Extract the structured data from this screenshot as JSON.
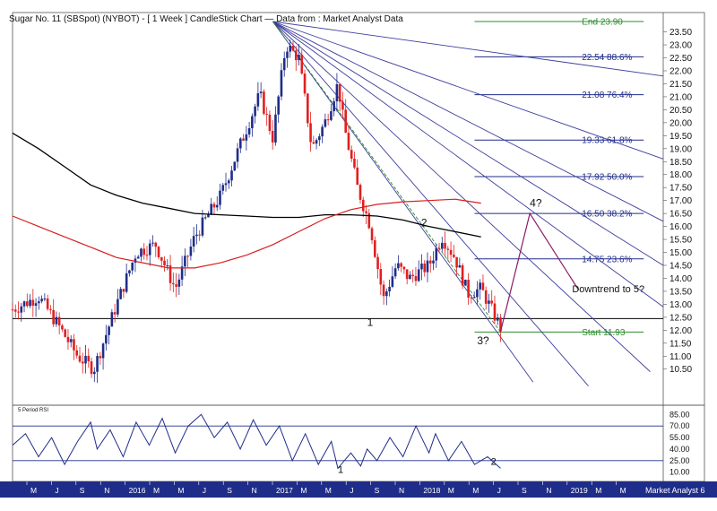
{
  "chart_data": [
    {
      "type": "candlestick",
      "title": "Sugar No. 11 (SBSpot) (NYBOT) - [ 1 Week ] CandleStick Chart — Data from : Market Analyst Data",
      "ylim": [
        9.8,
        23.9
      ],
      "y_ticks": [
        10.5,
        11.0,
        11.5,
        12.0,
        12.5,
        13.0,
        13.5,
        14.0,
        14.5,
        15.0,
        15.5,
        16.0,
        16.5,
        17.0,
        17.5,
        18.0,
        18.5,
        19.0,
        19.5,
        20.0,
        20.5,
        21.0,
        21.5,
        22.0,
        22.5,
        23.0,
        23.5
      ],
      "price_path": [
        [
          0.0,
          12.8
        ],
        [
          0.04,
          13.3
        ],
        [
          0.07,
          12.2
        ],
        [
          0.1,
          11.0
        ],
        [
          0.125,
          10.5
        ],
        [
          0.16,
          13.0
        ],
        [
          0.19,
          15.0
        ],
        [
          0.22,
          15.3
        ],
        [
          0.25,
          13.6
        ],
        [
          0.28,
          15.6
        ],
        [
          0.32,
          17.2
        ],
        [
          0.36,
          19.8
        ],
        [
          0.38,
          21.1
        ],
        [
          0.4,
          19.4
        ],
        [
          0.42,
          23.0
        ],
        [
          0.44,
          22.5
        ],
        [
          0.46,
          19.0
        ],
        [
          0.48,
          20.0
        ],
        [
          0.5,
          21.5
        ],
        [
          0.51,
          19.8
        ],
        [
          0.53,
          17.5
        ],
        [
          0.55,
          16.0
        ],
        [
          0.57,
          13.2
        ],
        [
          0.59,
          14.5
        ],
        [
          0.61,
          14.0
        ],
        [
          0.64,
          14.5
        ],
        [
          0.66,
          15.6
        ],
        [
          0.68,
          14.8
        ],
        [
          0.7,
          13.4
        ],
        [
          0.72,
          13.6
        ],
        [
          0.75,
          12.1
        ]
      ],
      "sma_black": [
        [
          0.0,
          19.6
        ],
        [
          0.04,
          19.0
        ],
        [
          0.08,
          18.3
        ],
        [
          0.12,
          17.6
        ],
        [
          0.16,
          17.2
        ],
        [
          0.2,
          16.9
        ],
        [
          0.24,
          16.7
        ],
        [
          0.28,
          16.5
        ],
        [
          0.32,
          16.45
        ],
        [
          0.36,
          16.4
        ],
        [
          0.4,
          16.35
        ],
        [
          0.44,
          16.35
        ],
        [
          0.48,
          16.45
        ],
        [
          0.52,
          16.45
        ],
        [
          0.56,
          16.4
        ],
        [
          0.6,
          16.25
        ],
        [
          0.64,
          16.0
        ],
        [
          0.68,
          15.8
        ],
        [
          0.72,
          15.6
        ]
      ],
      "sma_red": [
        [
          0.0,
          16.4
        ],
        [
          0.04,
          16.0
        ],
        [
          0.08,
          15.6
        ],
        [
          0.12,
          15.2
        ],
        [
          0.16,
          14.8
        ],
        [
          0.2,
          14.6
        ],
        [
          0.24,
          14.4
        ],
        [
          0.28,
          14.4
        ],
        [
          0.32,
          14.6
        ],
        [
          0.36,
          14.9
        ],
        [
          0.4,
          15.3
        ],
        [
          0.44,
          15.8
        ],
        [
          0.48,
          16.3
        ],
        [
          0.52,
          16.65
        ],
        [
          0.56,
          16.85
        ],
        [
          0.6,
          16.95
        ],
        [
          0.64,
          17.0
        ],
        [
          0.68,
          17.05
        ],
        [
          0.72,
          16.9
        ]
      ],
      "fib_levels": [
        {
          "label": "End 23.90",
          "value": 23.9
        },
        {
          "label": "22.54 88.6%",
          "value": 22.54
        },
        {
          "label": "21.08 76.4%",
          "value": 21.08
        },
        {
          "label": "19.33 61.8%",
          "value": 19.33
        },
        {
          "label": "17.92 50.0%",
          "value": 17.92
        },
        {
          "label": "16.50 38.2%",
          "value": 16.5
        },
        {
          "label": "14.75 23.6%",
          "value": 14.75
        },
        {
          "label": "Start 11.93",
          "value": 11.93
        }
      ],
      "support_level": 12.45,
      "annotations": [
        {
          "label": "1",
          "x": 0.545,
          "y": 12.3
        },
        {
          "label": "2",
          "x": 0.628,
          "y": 16.15
        },
        {
          "label": "3?",
          "x": 0.714,
          "y": 11.6
        },
        {
          "label": "4?",
          "x": 0.795,
          "y": 16.9
        },
        {
          "label": "Downtrend to 5?",
          "x": 0.86,
          "y": 13.6
        }
      ]
    },
    {
      "type": "line",
      "title": "5 Period RSI",
      "ylim": [
        5,
        90
      ],
      "y_ticks": [
        10.0,
        25.0,
        40.0,
        55.0,
        70.0,
        85.0
      ],
      "reference_lines": [
        70,
        25
      ],
      "rsi": [
        [
          0.0,
          45
        ],
        [
          0.02,
          60
        ],
        [
          0.04,
          30
        ],
        [
          0.06,
          55
        ],
        [
          0.08,
          20
        ],
        [
          0.1,
          50
        ],
        [
          0.12,
          75
        ],
        [
          0.13,
          40
        ],
        [
          0.15,
          65
        ],
        [
          0.17,
          30
        ],
        [
          0.19,
          75
        ],
        [
          0.21,
          45
        ],
        [
          0.23,
          80
        ],
        [
          0.25,
          35
        ],
        [
          0.27,
          70
        ],
        [
          0.29,
          85
        ],
        [
          0.31,
          55
        ],
        [
          0.33,
          75
        ],
        [
          0.35,
          40
        ],
        [
          0.37,
          78
        ],
        [
          0.39,
          45
        ],
        [
          0.41,
          70
        ],
        [
          0.43,
          25
        ],
        [
          0.45,
          60
        ],
        [
          0.47,
          20
        ],
        [
          0.49,
          50
        ],
        [
          0.5,
          15
        ],
        [
          0.52,
          35
        ],
        [
          0.535,
          18
        ],
        [
          0.545,
          40
        ],
        [
          0.56,
          25
        ],
        [
          0.58,
          55
        ],
        [
          0.6,
          30
        ],
        [
          0.62,
          70
        ],
        [
          0.64,
          35
        ],
        [
          0.65,
          60
        ],
        [
          0.67,
          25
        ],
        [
          0.69,
          50
        ],
        [
          0.71,
          20
        ],
        [
          0.73,
          30
        ],
        [
          0.75,
          15
        ]
      ],
      "annotations": [
        {
          "label": "1",
          "x": 0.5,
          "y": 14
        },
        {
          "label": "2",
          "x": 0.735,
          "y": 24
        }
      ]
    }
  ],
  "x_axis_labels": [
    "M",
    "J",
    "S",
    "N",
    "2016",
    "M",
    "M",
    "J",
    "S",
    "N",
    "2017",
    "M",
    "M",
    "J",
    "S",
    "N",
    "2018",
    "M",
    "M",
    "J",
    "S",
    "N",
    "2019",
    "M",
    "M"
  ],
  "footer_brand": "Market Analyst 6",
  "colors": {
    "bull": "#1f2d8a",
    "bear": "#e02020",
    "sma_black": "#000000",
    "sma_red": "#d81e1e",
    "fib_line": "#1f2d8a",
    "fib_text": "#1f2d8a",
    "fan": "#3d3d9e",
    "fan_green": "#2e8b2e",
    "level_green": "#2e8b2e",
    "projection": "#8b1a6b",
    "axis_bar": "#1f2d8a",
    "text": "#111111"
  }
}
